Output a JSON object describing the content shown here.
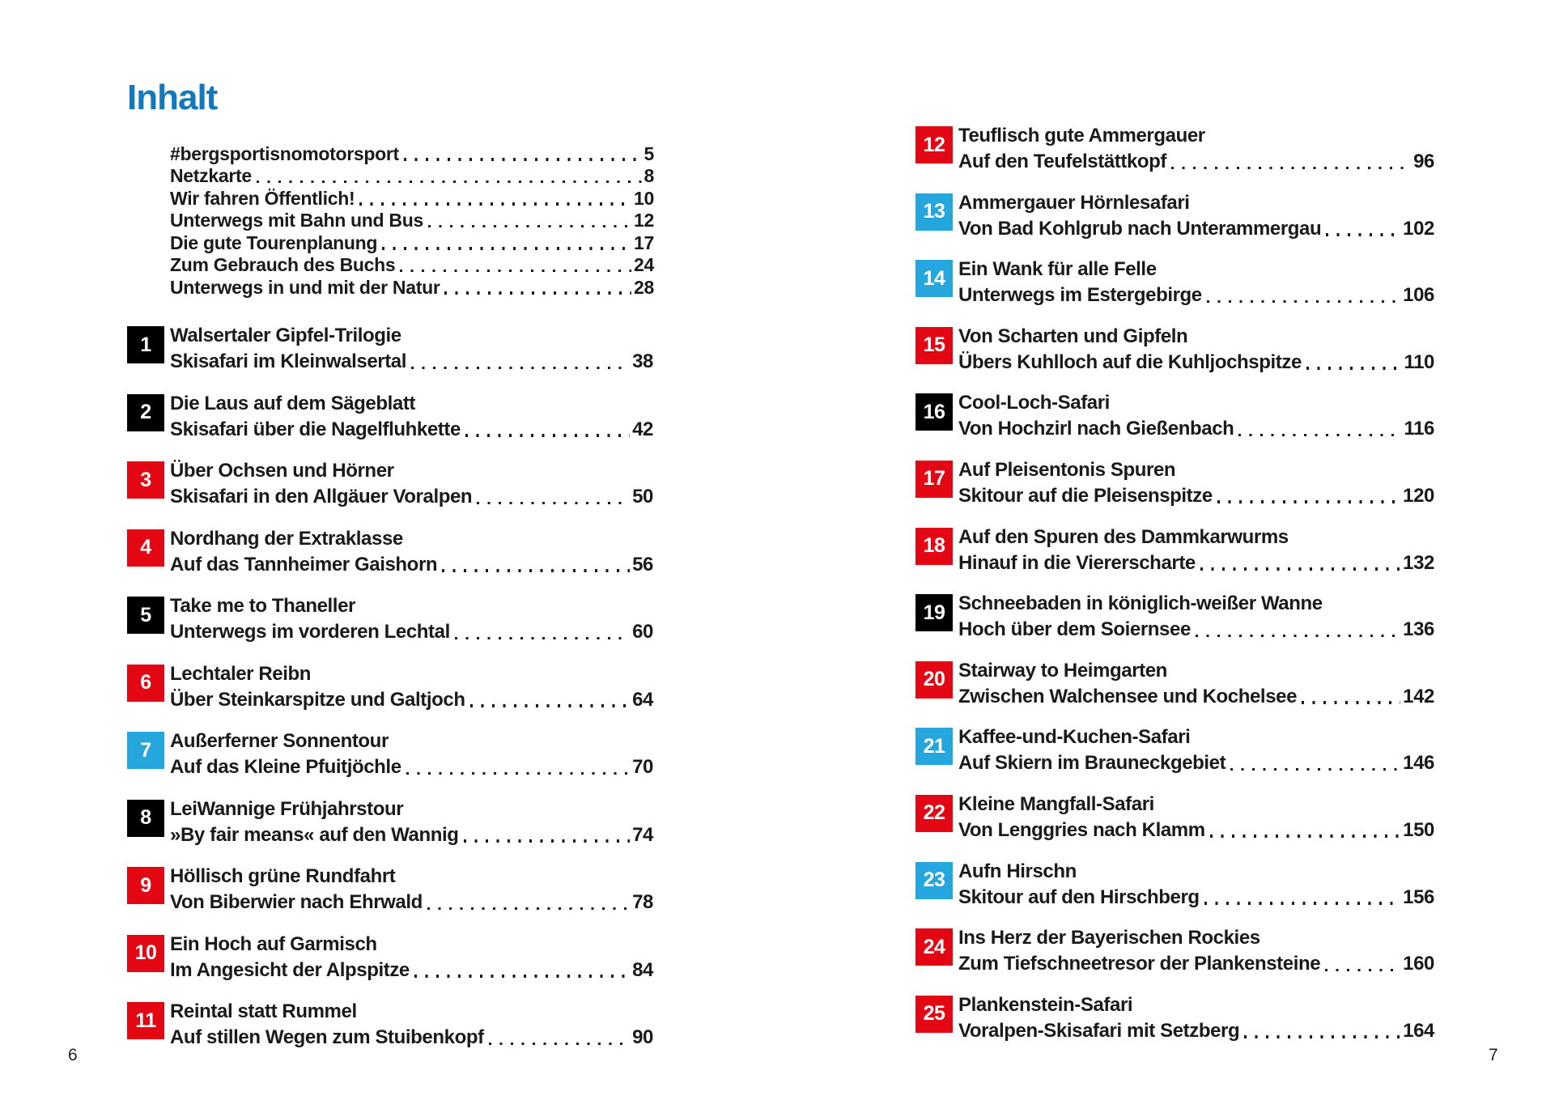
{
  "page": {
    "title": "Inhalt",
    "folio_left": "6",
    "folio_right": "7"
  },
  "colors": {
    "brand_blue": "#1279bd",
    "badge_red": "#e30613",
    "badge_blue": "#25a6dd",
    "badge_black": "#000000"
  },
  "intro_items": [
    {
      "label": "#bergsportisnomotorsport",
      "page": "5"
    },
    {
      "label": "Netzkarte",
      "page": "8"
    },
    {
      "label": "Wir fahren Öffentlich!",
      "page": "10"
    },
    {
      "label": "Unterwegs mit Bahn und Bus",
      "page": "12"
    },
    {
      "label": "Die gute Tourenplanung",
      "page": "17"
    },
    {
      "label": "Zum Gebrauch des Buchs",
      "page": "24"
    },
    {
      "label": "Unterwegs in und mit der Natur",
      "page": "28"
    }
  ],
  "left_entries": [
    {
      "num": "1",
      "color": "black",
      "title": "Walsertaler Gipfel-Trilogie",
      "subtitle": "Skisafari im Kleinwalsertal",
      "page": "38"
    },
    {
      "num": "2",
      "color": "black",
      "title": "Die Laus auf dem Sägeblatt",
      "subtitle": "Skisafari über die Nagelfluhkette",
      "page": "42"
    },
    {
      "num": "3",
      "color": "red",
      "title": "Über Ochsen und Hörner",
      "subtitle": "Skisafari in den Allgäuer Voralpen",
      "page": "50"
    },
    {
      "num": "4",
      "color": "red",
      "title": "Nordhang der Extraklasse",
      "subtitle": "Auf das Tannheimer Gaishorn",
      "page": "56"
    },
    {
      "num": "5",
      "color": "black",
      "title": "Take me to Thaneller",
      "subtitle": "Unterwegs im vorderen Lechtal",
      "page": "60"
    },
    {
      "num": "6",
      "color": "red",
      "title": "Lechtaler Reibn",
      "subtitle": "Über Steinkarspitze und Galtjoch",
      "page": "64"
    },
    {
      "num": "7",
      "color": "blue",
      "title": "Außerferner Sonnentour",
      "subtitle": "Auf das Kleine Pfuitjöchle",
      "page": "70"
    },
    {
      "num": "8",
      "color": "black",
      "title": "LeiWannige Frühjahrstour",
      "subtitle": "»By fair means« auf den Wannig",
      "page": "74"
    },
    {
      "num": "9",
      "color": "red",
      "title": "Höllisch grüne Rundfahrt",
      "subtitle": "Von Biberwier nach Ehrwald",
      "page": "78"
    },
    {
      "num": "10",
      "color": "red",
      "title": "Ein Hoch auf Garmisch",
      "subtitle": "Im Angesicht der Alpspitze",
      "page": "84"
    },
    {
      "num": "11",
      "color": "red",
      "title": "Reintal statt Rummel",
      "subtitle": "Auf stillen Wegen zum Stuibenkopf",
      "page": "90"
    }
  ],
  "right_entries": [
    {
      "num": "12",
      "color": "red",
      "title": "Teuflisch gute Ammergauer",
      "subtitle": "Auf den Teufelstättkopf",
      "page": "96"
    },
    {
      "num": "13",
      "color": "blue",
      "title": "Ammergauer Hörnlesafari",
      "subtitle": "Von Bad Kohlgrub nach Unterammergau",
      "page": "102"
    },
    {
      "num": "14",
      "color": "blue",
      "title": "Ein Wank für alle Felle",
      "subtitle": "Unterwegs im Estergebirge",
      "page": "106"
    },
    {
      "num": "15",
      "color": "red",
      "title": "Von Scharten und Gipfeln",
      "subtitle": "Übers Kuhlloch auf die Kuhljochspitze",
      "page": "110"
    },
    {
      "num": "16",
      "color": "black",
      "title": "Cool-Loch-Safari",
      "subtitle": "Von Hochzirl nach Gießenbach",
      "page": "116"
    },
    {
      "num": "17",
      "color": "red",
      "title": "Auf Pleisentonis Spuren",
      "subtitle": "Skitour auf die Pleisenspitze",
      "page": "120"
    },
    {
      "num": "18",
      "color": "red",
      "title": "Auf den Spuren des Dammkarwurms",
      "subtitle": "Hinauf in die Viererscharte",
      "page": "132"
    },
    {
      "num": "19",
      "color": "black",
      "title": "Schneebaden in königlich-weißer Wanne",
      "subtitle": "Hoch über dem Soiernsee",
      "page": "136"
    },
    {
      "num": "20",
      "color": "red",
      "title": "Stairway to Heimgarten",
      "subtitle": "Zwischen Walchensee und Kochelsee",
      "page": "142"
    },
    {
      "num": "21",
      "color": "blue",
      "title": "Kaffee-und-Kuchen-Safari",
      "subtitle": "Auf Skiern im Brauneckgebiet",
      "page": "146"
    },
    {
      "num": "22",
      "color": "red",
      "title": "Kleine Mangfall-Safari",
      "subtitle": "Von Lenggries nach Klamm",
      "page": "150"
    },
    {
      "num": "23",
      "color": "blue",
      "title": "Aufn Hirschn",
      "subtitle": "Skitour auf den Hirschberg",
      "page": "156"
    },
    {
      "num": "24",
      "color": "red",
      "title": "Ins Herz der Bayerischen Rockies",
      "subtitle": "Zum Tiefschneetresor der Plankensteine",
      "page": "160"
    },
    {
      "num": "25",
      "color": "red",
      "title": "Plankenstein-Safari",
      "subtitle": "Voralpen-Skisafari mit Setzberg",
      "page": "164"
    }
  ]
}
